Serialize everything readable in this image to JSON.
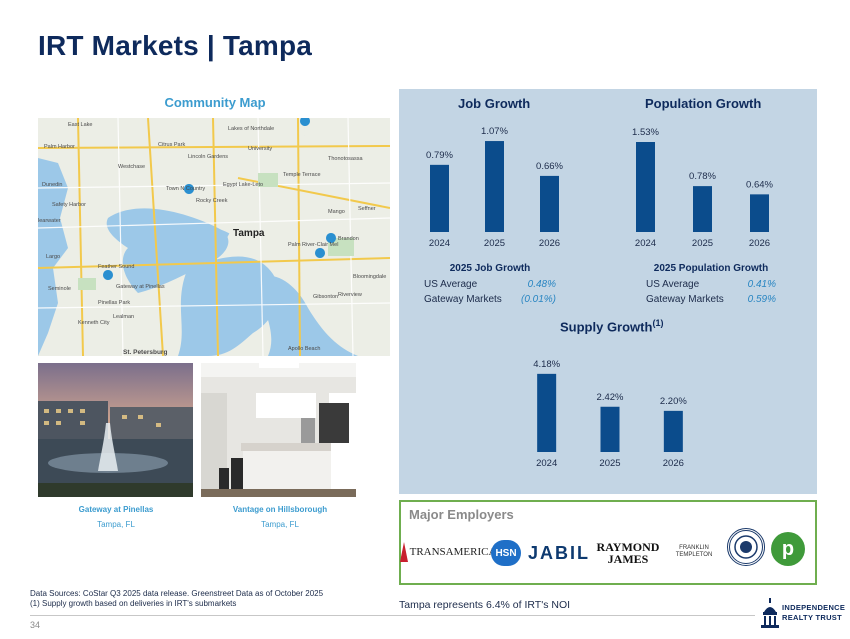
{
  "title": "IRT Markets | Tampa",
  "map": {
    "heading": "Community Map",
    "city_label": "Tampa",
    "places": [
      "East Lake",
      "Lakes of Northdale",
      "Citrus Park",
      "Palm Harbor",
      "University",
      "Westchase",
      "Lincoln Gardens",
      "Temple Terrace",
      "Thonotosassa",
      "Dunedin",
      "Town N Country",
      "Egypt Lake-Leto",
      "Rocky Creek",
      "Safety Harbor",
      "Mango",
      "Seffner",
      "learwater",
      "Brandon",
      "Palm River-Clair Mel",
      "Largo",
      "Feather Sound",
      "Gateway at Pinellas",
      "Bloomingdale",
      "Riverview",
      "Pinellas Park",
      "Kenneth City",
      "Lealman",
      "Gibsonton",
      "Apollo Beach",
      "St. Petersburg",
      "Seminole"
    ]
  },
  "properties": [
    {
      "name": "Gateway at Pinellas",
      "city": "Tampa, FL"
    },
    {
      "name": "Vantage on Hillsborough",
      "city": "Tampa, FL"
    }
  ],
  "chart_data": [
    {
      "type": "bar",
      "title": "Job Growth",
      "categories": [
        "2024",
        "2025",
        "2026"
      ],
      "values": [
        0.79,
        1.07,
        0.66
      ],
      "value_labels": [
        "0.79%",
        "1.07%",
        "0.66%"
      ],
      "ylim": [
        0,
        1.2
      ],
      "units": "%"
    },
    {
      "type": "bar",
      "title": "Population Growth",
      "categories": [
        "2024",
        "2025",
        "2026"
      ],
      "values": [
        1.53,
        0.78,
        0.64
      ],
      "value_labels": [
        "1.53%",
        "0.78%",
        "0.64%"
      ],
      "ylim": [
        0,
        1.7
      ],
      "units": "%"
    },
    {
      "type": "bar",
      "title": "Supply Growth",
      "title_sup": "(1)",
      "categories": [
        "2024",
        "2025",
        "2026"
      ],
      "values": [
        4.18,
        2.42,
        2.2
      ],
      "value_labels": [
        "4.18%",
        "2.42%",
        "2.20%"
      ],
      "ylim": [
        0,
        4.6
      ],
      "units": "%"
    }
  ],
  "job_stats": {
    "title": "2025 Job Growth",
    "rows": [
      {
        "label": "US Average",
        "value": "0.48%"
      },
      {
        "label": "Gateway Markets",
        "value": "(0.01%)"
      }
    ]
  },
  "pop_stats": {
    "title": "2025 Population Growth",
    "rows": [
      {
        "label": "US Average",
        "value": "0.41%"
      },
      {
        "label": "Gateway Markets",
        "value": "0.59%"
      }
    ]
  },
  "employers": {
    "title": "Major Employers",
    "logos": {
      "transamerica": "TRANSAMERICA",
      "hsn": "HSN",
      "jabil": "JABIL",
      "raymond_1": "RAYMOND",
      "raymond_2": "JAMES",
      "franklin_1": "FRANKLIN",
      "franklin_2": "TEMPLETON",
      "publix": "p"
    }
  },
  "footer": {
    "source_line_1": "Data Sources: CoStar Q3 2025 data release. Greenstreet Data as of October 2025",
    "source_line_2": "(1)  Supply growth based on deliveries in IRT's submarkets",
    "noi_note": "Tampa represents 6.4% of IRT's NOI",
    "page_number": "34",
    "brand_line_1": "INDEPENDENCE",
    "brand_line_2": "REALTY TRUST"
  },
  "colors": {
    "navy": "#0e2a5c",
    "accent_blue": "#3c9ccf",
    "bar": "#0b4c8c",
    "panel_bg": "#c3d5e4",
    "employer_border": "#6fae4f"
  }
}
